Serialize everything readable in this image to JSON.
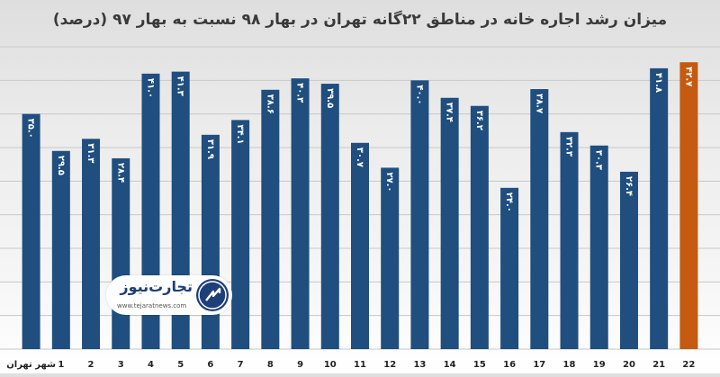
{
  "chart_data": {
    "type": "bar",
    "title": "میزان رشد اجاره خانه در مناطق ۲۲گانه تهران در بهار ۹۸ نسبت به بهار ۹۷ (درصد)",
    "categories": [
      "شهر تهران",
      "1",
      "2",
      "3",
      "4",
      "5",
      "6",
      "7",
      "8",
      "9",
      "10",
      "11",
      "12",
      "13",
      "14",
      "15",
      "16",
      "17",
      "18",
      "19",
      "20",
      "21",
      "22"
    ],
    "value_labels": [
      "۳۵.۰",
      "۲۹.۵",
      "۳۱.۳",
      "۲۸.۴",
      "۴۱.۰",
      "۴۱.۳",
      "۳۱.۹",
      "۳۴.۱",
      "۳۸.۶",
      "۴۰.۳",
      "۳۹.۵",
      "۳۰.۷",
      "۲۷.۰",
      "۴۰.۰",
      "۳۷.۴",
      "۳۶.۲",
      "۲۴.۰",
      "۳۸.۷",
      "۳۲.۳",
      "۳۰.۳",
      "۲۶.۴",
      "۴۱.۸",
      "۴۲.۷"
    ],
    "values": [
      35.0,
      29.5,
      31.3,
      28.4,
      41.0,
      41.3,
      31.9,
      34.1,
      38.6,
      40.3,
      39.5,
      30.7,
      27.0,
      40.0,
      37.4,
      36.2,
      24.0,
      38.7,
      32.3,
      30.3,
      26.4,
      41.8,
      42.7
    ],
    "ylim": [
      0,
      45
    ],
    "grid": true,
    "colors": {
      "bar": "#1f4e7f",
      "highlight": "#c55a11",
      "label": "#ffffff",
      "axis_text": "#222222",
      "grid": "#c8c8c8"
    },
    "highlight_index": 22
  },
  "logo": {
    "name": "تجارت‌نیوز",
    "url": "www.tejaratnews.com",
    "icon": "tejaratnews-logo-icon"
  }
}
